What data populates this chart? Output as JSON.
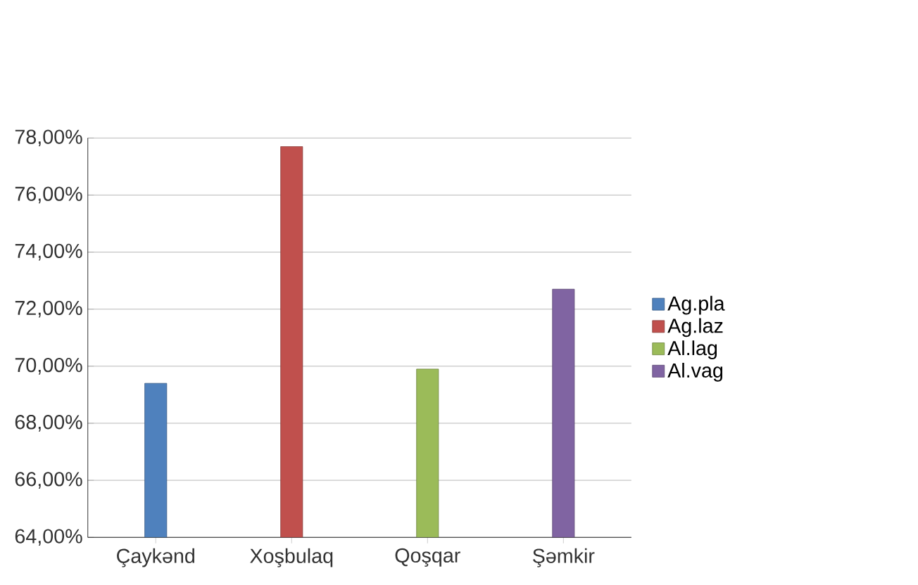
{
  "chart_data": {
    "type": "bar",
    "categories": [
      "Çaykənd",
      "Xoşbulaq",
      "Qoşqar",
      "Şəmkir"
    ],
    "series": [
      {
        "name": "Ag.pla",
        "color": "#4f81bd",
        "values": [
          69.4,
          null,
          null,
          null
        ]
      },
      {
        "name": "Ag.laz",
        "color": "#c0504d",
        "values": [
          null,
          77.7,
          null,
          null
        ]
      },
      {
        "name": "Al.lag",
        "color": "#9bbb59",
        "values": [
          null,
          null,
          69.9,
          null
        ]
      },
      {
        "name": "Al.vag",
        "color": "#8064a2",
        "values": [
          null,
          null,
          null,
          72.7
        ]
      }
    ],
    "ylim": [
      64,
      78
    ],
    "yticks": [
      {
        "value": 64,
        "label": "64,00%"
      },
      {
        "value": 66,
        "label": "66,00%"
      },
      {
        "value": 68,
        "label": "68,00%"
      },
      {
        "value": 70,
        "label": "70,00%"
      },
      {
        "value": 72,
        "label": "72,00%"
      },
      {
        "value": 74,
        "label": "74,00%"
      },
      {
        "value": 76,
        "label": "76,00%"
      },
      {
        "value": 78,
        "label": "78,00%"
      }
    ],
    "grid": "y",
    "legend": "right"
  }
}
